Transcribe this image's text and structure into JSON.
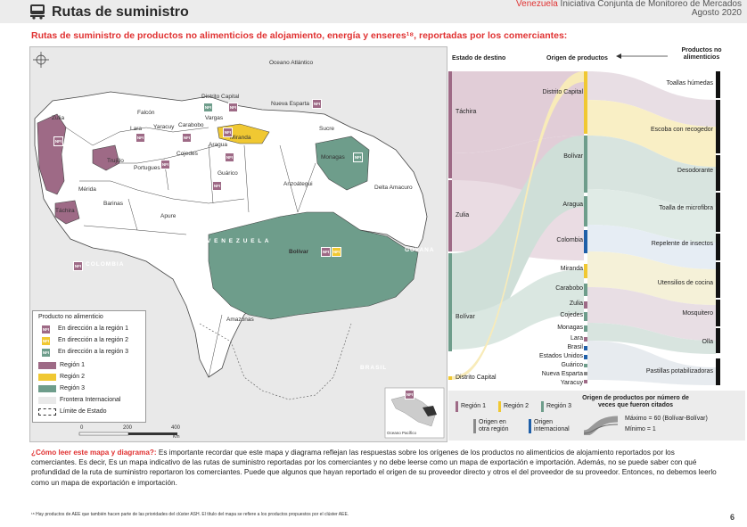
{
  "header": {
    "title": "Rutas de suministro",
    "org": "Venezuela",
    "org_rest": " Iniciativa Conjunta de Monitoreo de Mercados",
    "date": "Agosto 2020"
  },
  "subtitle": "Rutas de suministro de productos no alimenticios de alojamiento, energía y enseres¹⁸, reportadas por los comerciantes:",
  "map": {
    "ocean_label": "Oceano Atlántico",
    "country_label": "V E N E Z U E L A",
    "colombia": "COLOMBIA",
    "brasil": "BRASIL",
    "guyana": "GUYANA",
    "states": [
      "Zulia",
      "Falcón",
      "Lara",
      "Yaracuy",
      "Carabobo",
      "Distrito Capital",
      "Vargas",
      "Miranda",
      "Nueva Esparta",
      "Sucre",
      "Trujillo",
      "Portuguesa",
      "Cojedes",
      "Aragua",
      "Guárico",
      "Monagas",
      "Anzoátegui",
      "Delta Amacuro",
      "Mérida",
      "Táchira",
      "Barinas",
      "Apure",
      "Bolívar",
      "Amazonas"
    ],
    "scale": {
      "s0": "0",
      "s1": "200",
      "s2": "400",
      "unit": "Km"
    },
    "inset": "Oceano Pacífico",
    "icon_text": "NFI"
  },
  "legend": {
    "title": "Producto no alimenticio",
    "items": [
      "En dirección a la región 1",
      "En dirección a la región 2",
      "En dirección a la región 3",
      "Región 1",
      "Región 2",
      "Región 3",
      "Frontera Internacional",
      "Límite de Estado"
    ]
  },
  "sankey": {
    "col_dest": "Estado de destino",
    "col_origin": "Origen de productos",
    "col_products": "Productos no alimenticios",
    "destinations": [
      "Táchira",
      "Zulia",
      "Bolívar",
      "Distrito Capital"
    ],
    "origins": [
      "Distrito Capital",
      "Bolívar",
      "Aragua",
      "Colombia",
      "Miranda",
      "Carabobo",
      "Zulia",
      "Cojedes",
      "Monagas",
      "Lara",
      "Brasil",
      "Estados Unidos",
      "Guárico",
      "Nueva Esparta",
      "Yaracuy"
    ],
    "products": [
      "Toallas húmedas",
      "Escoba con recogedor",
      "Desodorante",
      "Toalla de microfibra",
      "Repelente de insectos",
      "Utensilios de cocina",
      "Mosquitero",
      "Olla",
      "Pastillas potabilizadoras"
    ]
  },
  "sankey_legend": {
    "r1": "Región 1",
    "r2": "Región 2",
    "r3": "Región 3",
    "other": "Origen en otra región",
    "intl": "Origen internacional",
    "count_title": "Origen de productos por número de veces que fueron citados",
    "max": "Máximo = 60 (Bolívar-Bolívar)",
    "min": "Mínimo = 1"
  },
  "how": {
    "question": "¿Cómo leer este mapa y diagrama?:",
    "text": " Es importante recordar que este mapa y diagrama reflejan las respuestas sobre los orígenes de los productos no alimenticios de alojamiento reportados por los comerciantes. Es decir, Es un mapa indicativo de las rutas de suministro reportadas por los comerciantes y no debe leerse como un mapa de exportación e importación. Además, no se puede saber con qué profundidad de la ruta de suministro reportaron los comerciantes. Puede que algunos que hayan reportado el origen de su proveedor directo y otros el del proveedor de su proveedor. Entonces, no debemos leerlo como un mapa de exportación e importación."
  },
  "footnote": "¹⁸ Hay productos de AEE que también hacen parte de las prioridades del clúster ASH. El título del mapa se refiere a los productos propuestos por el clúster AEE.",
  "page_number": "6",
  "colors": {
    "region1": "#9e6a86",
    "region2": "#f0c832",
    "region3": "#6e9d8b",
    "accent": "#e03232",
    "intl": "#1f5fa8",
    "other": "#8a8a8a"
  }
}
